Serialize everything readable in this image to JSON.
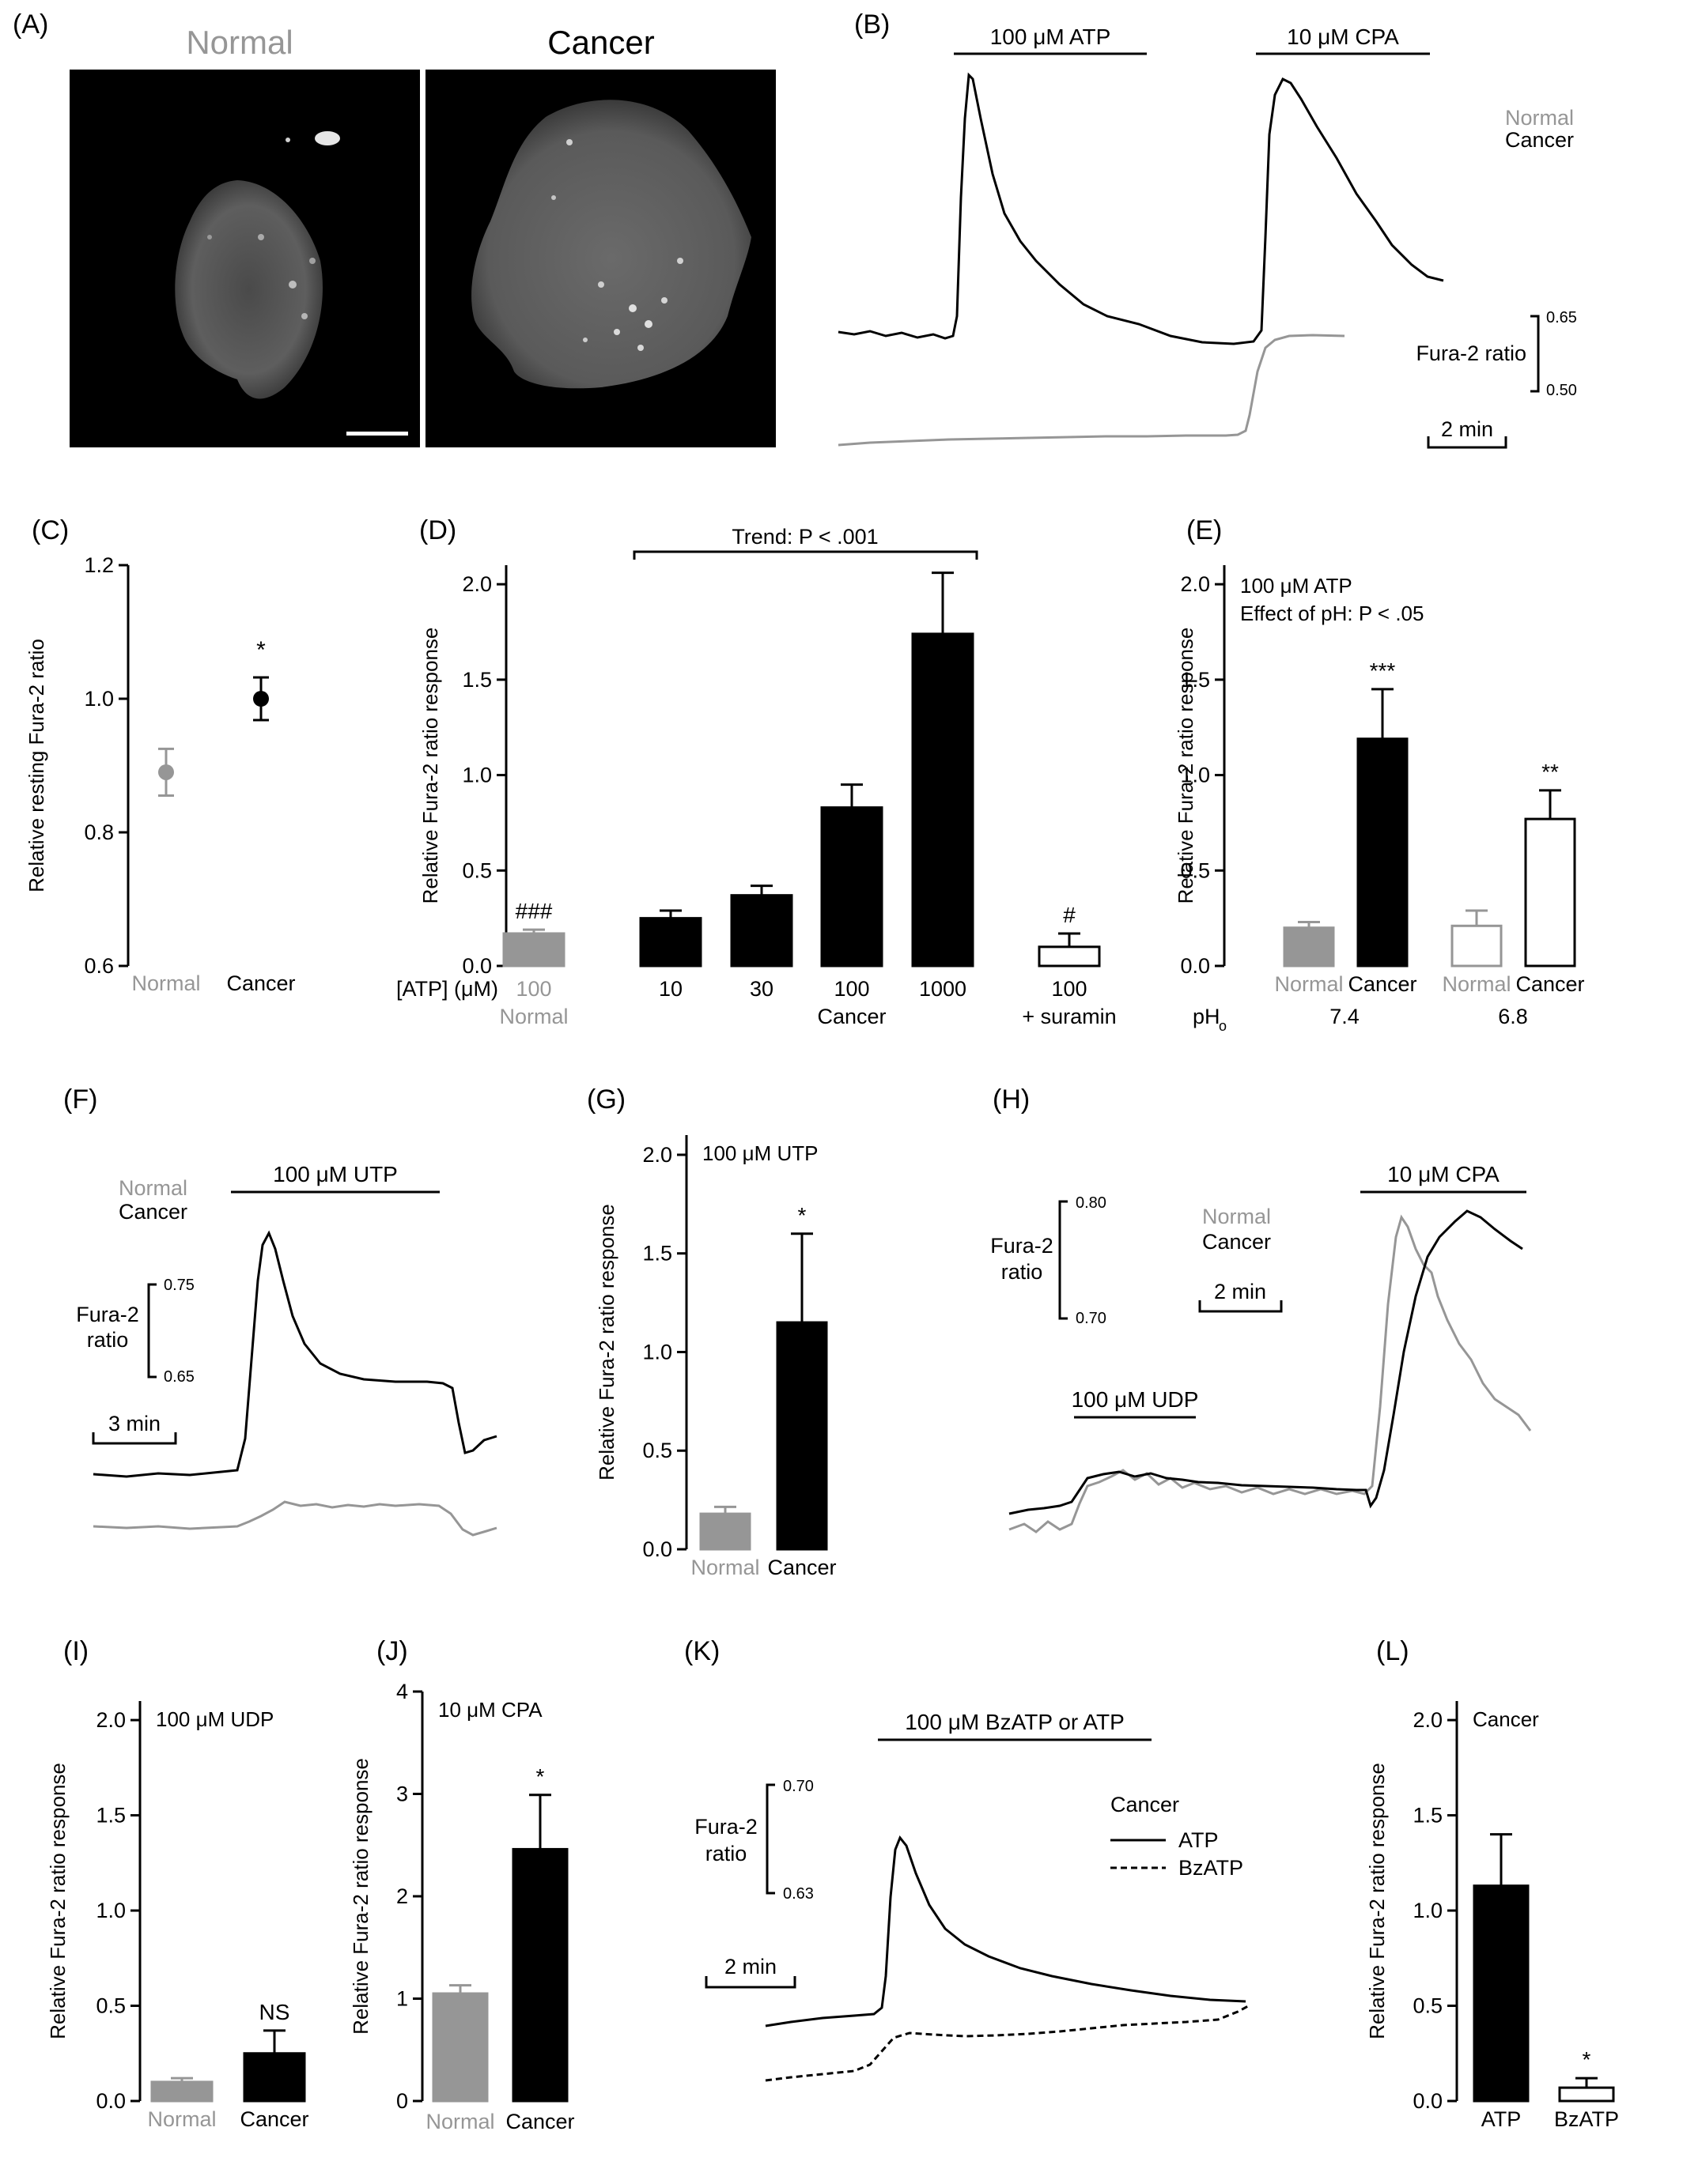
{
  "colors": {
    "normal": "#969696",
    "cancer": "#000000",
    "empty_bar": "#ffffff"
  },
  "panels": {
    "A": {
      "letter": "(A)",
      "titles": [
        "Normal",
        "Cancer"
      ]
    },
    "B": {
      "letter": "(B)",
      "bars": [
        "100 μM ATP",
        "10 μM CPA"
      ],
      "legend": [
        "Normal",
        "Cancer"
      ],
      "scale_label": "Fura-2 ratio",
      "scale_values": [
        "0.65",
        "0.50"
      ],
      "time_label": "2 min"
    },
    "F": {
      "letter": "(F)",
      "bar": "100 μM UTP",
      "legend": [
        "Normal",
        "Cancer"
      ],
      "scale_label": [
        "Fura-2",
        "ratio"
      ],
      "scale_values": [
        "0.75",
        "0.65"
      ],
      "time_label": "3 min"
    },
    "H": {
      "letter": "(H)",
      "bars": [
        "10 μM CPA",
        "100 μM UDP"
      ],
      "legend": [
        "Normal",
        "Cancer"
      ],
      "scale_label": [
        "Fura-2",
        "ratio"
      ],
      "scale_values": [
        "0.80",
        "0.70"
      ],
      "time_label": "2 min"
    },
    "K": {
      "letter": "(K)",
      "bar": "100 μM BzATP or ATP",
      "legend_title": "Cancer",
      "legend": [
        "ATP",
        "BzATP"
      ],
      "scale_label": [
        "Fura-2",
        "ratio"
      ],
      "scale_values": [
        "0.70",
        "0.63"
      ],
      "time_label": "2 min"
    }
  },
  "chart_data": [
    {
      "panel": "C",
      "letter": "(C)",
      "type": "scatter",
      "categories": [
        "Normal",
        "Cancer"
      ],
      "values": [
        0.89,
        1.0
      ],
      "errors": [
        0.035,
        0.032
      ],
      "annotations": [
        "",
        "*"
      ],
      "ylabel": "Relative resting Fura-2 ratio",
      "ylim": [
        0.6,
        1.2
      ],
      "yticks": [
        "0.6",
        "0.8",
        "1.0",
        "1.2"
      ]
    },
    {
      "panel": "D",
      "letter": "(D)",
      "type": "bar",
      "x_title": "[ATP] (μM)",
      "categories": [
        "100",
        "10",
        "30",
        "100",
        "1000",
        "100"
      ],
      "group_labels": [
        "Normal",
        "Cancer",
        "+ suramin"
      ],
      "values": [
        0.17,
        0.25,
        0.37,
        0.83,
        1.74,
        0.1
      ],
      "errors": [
        0.02,
        0.04,
        0.05,
        0.12,
        0.32,
        0.07
      ],
      "annotations": [
        "###",
        "",
        "",
        "",
        "",
        "#"
      ],
      "trend": "Trend: P < .001",
      "ylabel": "Relative Fura-2 ratio response",
      "ylim": [
        0,
        2.1
      ],
      "yticks": [
        "0.0",
        "0.5",
        "1.0",
        "1.5",
        "2.0"
      ]
    },
    {
      "panel": "E",
      "letter": "(E)",
      "type": "bar",
      "categories": [
        "Normal",
        "Cancer",
        "Normal",
        "Cancer"
      ],
      "values": [
        0.2,
        1.19,
        0.21,
        0.77
      ],
      "errors": [
        0.03,
        0.26,
        0.08,
        0.15
      ],
      "annotations": [
        "",
        "***",
        "",
        "**"
      ],
      "group_title": "pH",
      "group_sub": "o",
      "groups": [
        "7.4",
        "6.8"
      ],
      "text": [
        "100 μM ATP",
        "Effect of pH: P < .05"
      ],
      "ylabel": "Relative Fura-2 ratio response",
      "ylim": [
        0,
        2.1
      ],
      "yticks": [
        "0.0",
        "0.5",
        "1.0",
        "1.5",
        "2.0"
      ]
    },
    {
      "panel": "G",
      "letter": "(G)",
      "type": "bar",
      "categories": [
        "Normal",
        "Cancer"
      ],
      "values": [
        0.18,
        1.15
      ],
      "errors": [
        0.035,
        0.45
      ],
      "annotations": [
        "",
        "*"
      ],
      "text": [
        "100 μM UTP"
      ],
      "ylabel": "Relative Fura-2 ratio response",
      "ylim": [
        0,
        2.1
      ],
      "yticks": [
        "0.0",
        "0.5",
        "1.0",
        "1.5",
        "2.0"
      ]
    },
    {
      "panel": "I",
      "letter": "(I)",
      "type": "bar",
      "categories": [
        "Normal",
        "Cancer"
      ],
      "values": [
        0.1,
        0.25
      ],
      "errors": [
        0.02,
        0.12
      ],
      "annotations": [
        "",
        "NS"
      ],
      "text": [
        "100 μM UDP"
      ],
      "ylabel": "Relative Fura-2 ratio response",
      "ylim": [
        0,
        2.1
      ],
      "yticks": [
        "0.0",
        "0.5",
        "1.0",
        "1.5",
        "2.0"
      ]
    },
    {
      "panel": "J",
      "letter": "(J)",
      "type": "bar",
      "categories": [
        "Normal",
        "Cancer"
      ],
      "values": [
        1.05,
        2.46
      ],
      "errors": [
        0.08,
        0.53
      ],
      "annotations": [
        "",
        "*"
      ],
      "text": [
        "10 μM CPA"
      ],
      "ylabel": "Relative Fura-2 ratio response",
      "ylim": [
        0,
        4
      ],
      "yticks": [
        "0",
        "1",
        "2",
        "3",
        "4"
      ]
    },
    {
      "panel": "L",
      "letter": "(L)",
      "type": "bar",
      "categories": [
        "ATP",
        "BzATP"
      ],
      "values": [
        1.13,
        0.07
      ],
      "errors": [
        0.27,
        0.05
      ],
      "annotations": [
        "",
        "*"
      ],
      "text": [
        "Cancer"
      ],
      "ylabel": "Relative Fura-2 ratio response",
      "ylim": [
        0,
        2.1
      ],
      "yticks": [
        "0.0",
        "0.5",
        "1.0",
        "1.5",
        "2.0"
      ]
    }
  ]
}
